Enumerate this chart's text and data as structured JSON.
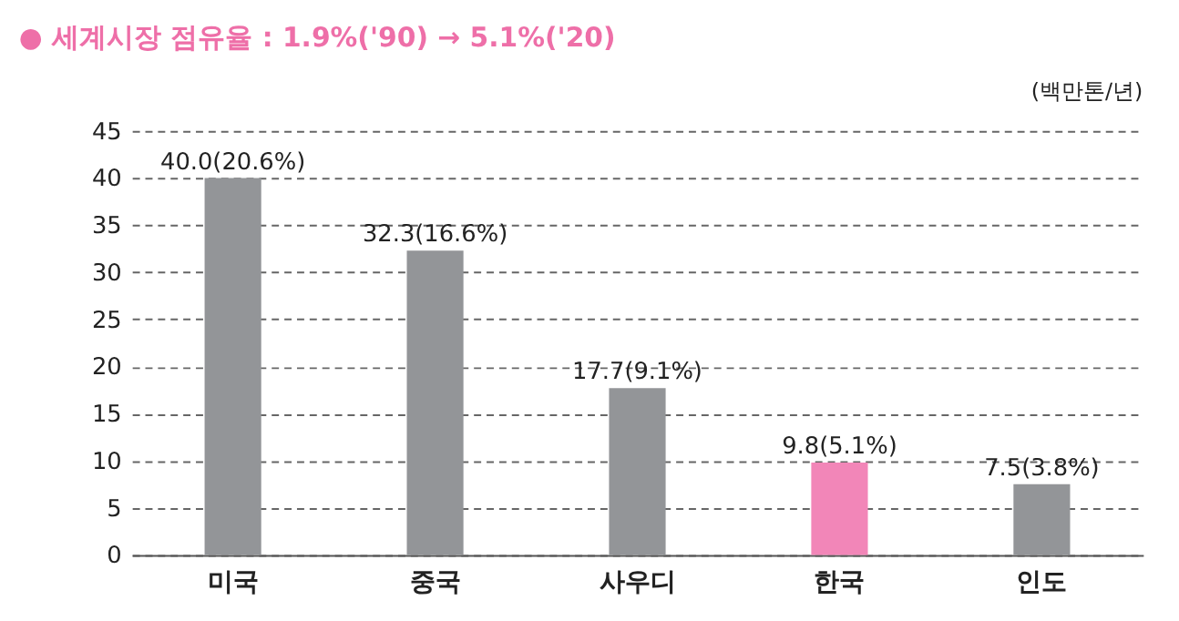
{
  "chart_data": {
    "type": "bar",
    "title": "● 세계시장 점유율 : 1.9%('90) → 5.1%('20)",
    "categories": [
      "미국",
      "중국",
      "사우디",
      "한국",
      "인도"
    ],
    "values": [
      40.0,
      32.3,
      17.7,
      9.8,
      7.5
    ],
    "value_labels": [
      "40.0(20.6%)",
      "32.3(16.6%)",
      "17.7(9.1%)",
      "9.8(5.1%)",
      "7.5(3.8%)"
    ],
    "colors": [
      "#939598",
      "#939598",
      "#939598",
      "#f286b8",
      "#939598"
    ],
    "ylim": [
      0,
      45
    ],
    "yticks": [
      0,
      5,
      10,
      15,
      20,
      25,
      30,
      35,
      40,
      45
    ],
    "grid": "y",
    "line_style": "dashed",
    "annotations": [
      "(백만톤/년)"
    ]
  }
}
